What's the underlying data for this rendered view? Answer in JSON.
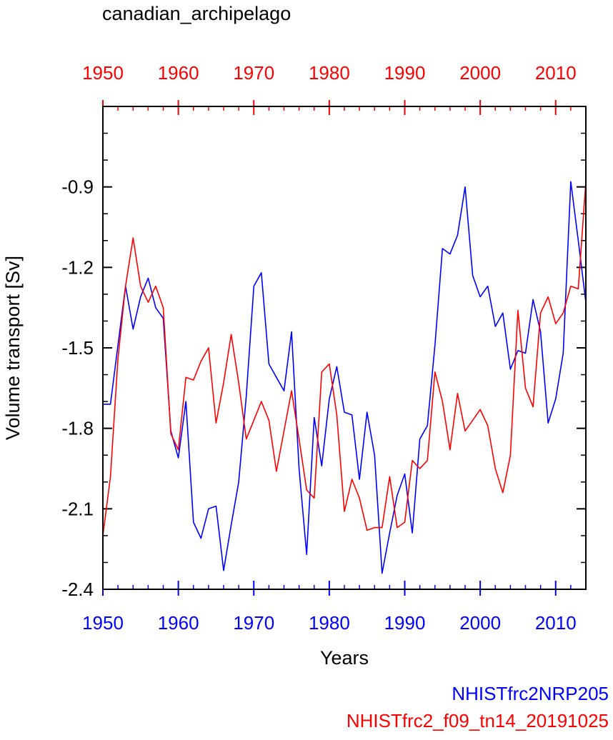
{
  "chart_data": {
    "type": "line",
    "title": "canadian_archipelago",
    "xlabel": "Years",
    "ylabel": "Volume transport [Sv]",
    "xlim": [
      1950,
      2014
    ],
    "ylim": [
      -2.4,
      -0.6
    ],
    "x_ticks": [
      1950,
      1960,
      1970,
      1980,
      1990,
      2000,
      2010
    ],
    "x_tick_labels": [
      "1950",
      "1960",
      "1970",
      "1980",
      "1990",
      "2000",
      "2010"
    ],
    "y_ticks": [
      -2.4,
      -2.1,
      -1.8,
      -1.5,
      -1.2,
      -0.9
    ],
    "y_tick_labels": [
      "-2.4",
      "-2.1",
      "-1.8",
      "-1.5",
      "-1.2",
      "-0.9"
    ],
    "x": [
      1950,
      1951,
      1952,
      1953,
      1954,
      1955,
      1956,
      1957,
      1958,
      1959,
      1960,
      1961,
      1962,
      1963,
      1964,
      1965,
      1966,
      1967,
      1968,
      1969,
      1970,
      1971,
      1972,
      1973,
      1974,
      1975,
      1976,
      1977,
      1978,
      1979,
      1980,
      1981,
      1982,
      1983,
      1984,
      1985,
      1986,
      1987,
      1988,
      1989,
      1990,
      1991,
      1992,
      1993,
      1994,
      1995,
      1996,
      1997,
      1998,
      1999,
      2000,
      2001,
      2002,
      2003,
      2004,
      2005,
      2006,
      2007,
      2008,
      2009,
      2010,
      2011,
      2012,
      2013,
      2014
    ],
    "series": [
      {
        "name": "NHISTfrc2NRP205",
        "color": "#0000ff",
        "values": [
          -1.71,
          -1.71,
          -1.49,
          -1.27,
          -1.43,
          -1.31,
          -1.24,
          -1.35,
          -1.39,
          -1.81,
          -1.91,
          -1.7,
          -2.15,
          -2.21,
          -2.1,
          -2.09,
          -2.33,
          -2.16,
          -2.0,
          -1.68,
          -1.27,
          -1.22,
          -1.56,
          -1.61,
          -1.66,
          -1.44,
          -1.95,
          -2.27,
          -1.76,
          -1.94,
          -1.69,
          -1.57,
          -1.74,
          -1.75,
          -1.99,
          -1.74,
          -1.9,
          -2.34,
          -2.19,
          -2.05,
          -1.97,
          -2.19,
          -1.84,
          -1.79,
          -1.49,
          -1.13,
          -1.15,
          -1.08,
          -0.9,
          -1.23,
          -1.31,
          -1.27,
          -1.42,
          -1.37,
          -1.58,
          -1.51,
          -1.52,
          -1.32,
          -1.44,
          -1.78,
          -1.69,
          -1.52,
          -0.88,
          -1.1,
          -1.33
        ]
      },
      {
        "name": "NHISTfrc2_f09_tn14_20191025",
        "color": "#ff0000",
        "values": [
          -2.2,
          -1.98,
          -1.54,
          -1.27,
          -1.09,
          -1.27,
          -1.33,
          -1.27,
          -1.35,
          -1.82,
          -1.88,
          -1.61,
          -1.62,
          -1.55,
          -1.5,
          -1.78,
          -1.63,
          -1.45,
          -1.63,
          -1.84,
          -1.77,
          -1.7,
          -1.77,
          -1.96,
          -1.81,
          -1.66,
          -1.84,
          -2.03,
          -2.06,
          -1.59,
          -1.56,
          -1.75,
          -2.11,
          -1.99,
          -2.06,
          -2.18,
          -2.17,
          -2.17,
          -1.98,
          -2.17,
          -2.15,
          -1.92,
          -1.95,
          -1.92,
          -1.59,
          -1.7,
          -1.88,
          -1.67,
          -1.81,
          -1.77,
          -1.73,
          -1.79,
          -1.95,
          -2.04,
          -1.9,
          -1.36,
          -1.65,
          -1.72,
          -1.37,
          -1.31,
          -1.41,
          -1.37,
          -1.27,
          -1.28,
          -0.88
        ]
      }
    ]
  }
}
